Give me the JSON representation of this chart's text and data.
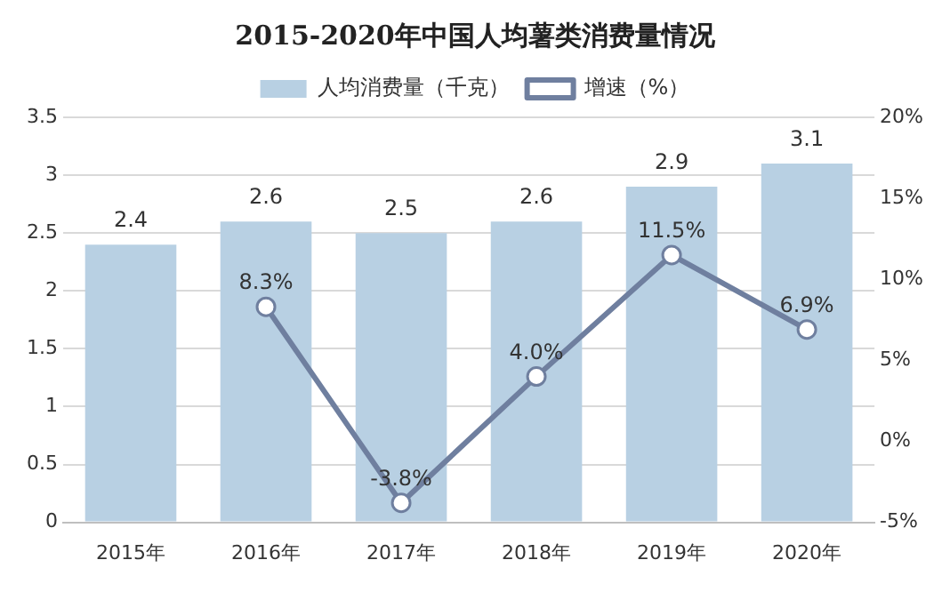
{
  "chart_data": {
    "type": "bar",
    "title": "2015-2020年中国人均薯类消费量情况",
    "categories": [
      "2015年",
      "2016年",
      "2017年",
      "2018年",
      "2019年",
      "2020年"
    ],
    "series": [
      {
        "name": "人均消费量（千克）",
        "color": "#b8d0e3",
        "values": [
          2.4,
          2.6,
          2.5,
          2.6,
          2.9,
          3.1
        ],
        "value_labels": [
          "2.4",
          "2.6",
          "2.5",
          "2.6",
          "2.9",
          "3.1"
        ]
      },
      {
        "name": "增速（%）",
        "type": "line",
        "axis": "y2",
        "color": "#6f7f9f",
        "marker": "circle",
        "values": [
          null,
          8.3,
          -3.8,
          4.0,
          11.5,
          6.9
        ],
        "value_labels": [
          null,
          "8.3%",
          "-3.8%",
          "4.0%",
          "11.5%",
          "6.9%"
        ]
      }
    ],
    "ylim": [
      0,
      3.5
    ],
    "yticks": [
      0,
      0.5,
      1,
      1.5,
      2,
      2.5,
      3,
      3.5
    ],
    "y2lim": [
      -5,
      20
    ],
    "y2ticks": [
      {
        "value": -5,
        "label": "-5%"
      },
      {
        "value": 0,
        "label": "0%"
      },
      {
        "value": 5,
        "label": "5%"
      },
      {
        "value": 10,
        "label": "10%"
      },
      {
        "value": 15,
        "label": "15%"
      },
      {
        "value": 20,
        "label": "20%"
      }
    ],
    "grid": "y",
    "legend": "top"
  }
}
